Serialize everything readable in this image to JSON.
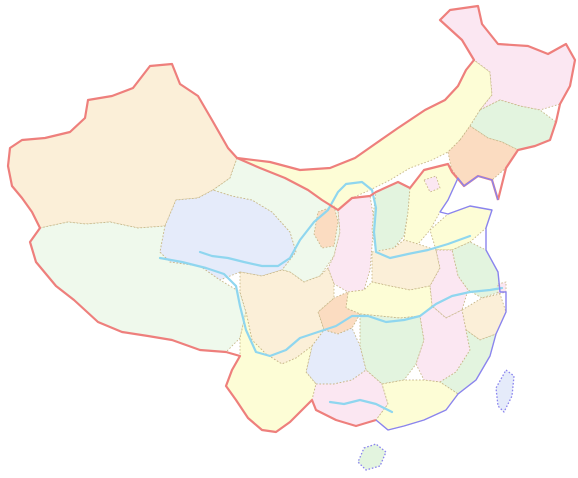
{
  "colors": {
    "background": "#ffffff",
    "land_border": "#ee7f7c",
    "coast_border": "#8a84ee",
    "river": "#8fd6ef",
    "province_border": "#c8b88a",
    "yellow": "#fdfdd6",
    "beige": "#fbefd8",
    "pink": "#fbe7f2",
    "green": "#e3f4df",
    "mint": "#eff9ec",
    "blue": "#e5ebfa",
    "orange": "#fbdcc1"
  },
  "map": {
    "subject": "map-of-china-provinces",
    "labels": []
  }
}
